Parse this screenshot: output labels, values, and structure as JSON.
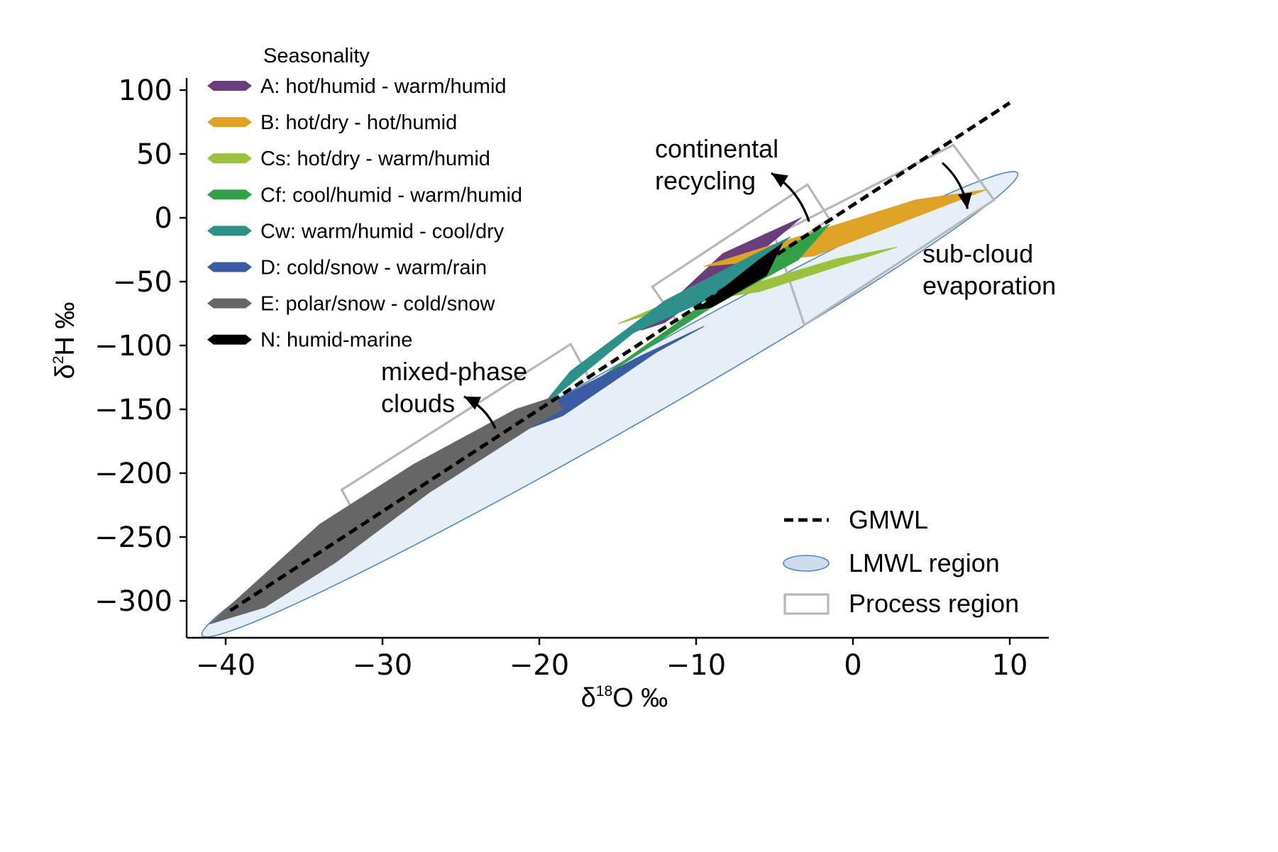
{
  "chart_data": {
    "type": "area",
    "xlabel": {
      "base": "δ",
      "sup": "18",
      "rest": "O ‰"
    },
    "ylabel": {
      "base": "δ",
      "sup": "2",
      "rest": "H ‰"
    },
    "xlim": [
      -42.5,
      12.5
    ],
    "ylim": [
      -330,
      110
    ],
    "xticks": [
      -40,
      -30,
      -20,
      -10,
      0,
      10
    ],
    "yticks": [
      100,
      50,
      0,
      -50,
      -100,
      -150,
      -200,
      -250,
      -300
    ],
    "xtick_labels": [
      "−40",
      "−30",
      "−20",
      "−10",
      "0",
      "10"
    ],
    "ytick_labels": [
      "100",
      "50",
      "0",
      "−50",
      "−100",
      "−150",
      "−200",
      "−250",
      "−300"
    ],
    "grid": false,
    "seasonality_legend": {
      "title": "Seasonality",
      "placement": "upper-left"
    },
    "series": [
      {
        "name": "A: hot/humid - warm/humid",
        "color": "#6b3d7d",
        "polygon": [
          [
            -3.3,
            0
          ],
          [
            -8.3,
            -28
          ],
          [
            -13.5,
            -88
          ],
          [
            -12.0,
            -82
          ],
          [
            -7.0,
            -38
          ]
        ]
      },
      {
        "name": "B: hot/dry - hot/humid",
        "color": "#dea227",
        "polygon": [
          [
            8.5,
            22
          ],
          [
            4.0,
            14
          ],
          [
            -9.5,
            -38
          ],
          [
            -2.5,
            -30
          ]
        ]
      },
      {
        "name": "Cs: hot/dry - warm/humid",
        "color": "#9bc13e",
        "polygon": [
          [
            2.8,
            -23
          ],
          [
            -1.0,
            -32
          ],
          [
            -15.0,
            -83
          ],
          [
            -12.5,
            -70
          ],
          [
            -6.0,
            -58
          ]
        ]
      },
      {
        "name": "Cf: cool/humid - warm/humid",
        "color": "#32a048",
        "polygon": [
          [
            -1.5,
            -5
          ],
          [
            -5.0,
            -28
          ],
          [
            -17.0,
            -133
          ],
          [
            -19.0,
            -153
          ],
          [
            -16.0,
            -125
          ],
          [
            -9.0,
            -70
          ],
          [
            -3.5,
            -33
          ]
        ]
      },
      {
        "name": "Cw: warm/humid - cool/dry",
        "color": "#2d918a",
        "polygon": [
          [
            -4.0,
            -15
          ],
          [
            -6.5,
            -30
          ],
          [
            -12.0,
            -65
          ],
          [
            -18.0,
            -120
          ],
          [
            -20.0,
            -150
          ],
          [
            -14.0,
            -90
          ],
          [
            -8.5,
            -60
          ]
        ]
      },
      {
        "name": "D: cold/snow - warm/rain",
        "color": "#3a5ca4",
        "polygon": [
          [
            -9.5,
            -85
          ],
          [
            -12.5,
            -105
          ],
          [
            -18.5,
            -155
          ],
          [
            -25.0,
            -185
          ],
          [
            -30.0,
            -215
          ],
          [
            -32.5,
            -237
          ],
          [
            -30.0,
            -230
          ],
          [
            -25.5,
            -190
          ],
          [
            -18.5,
            -140
          ],
          [
            -13.5,
            -108
          ]
        ]
      },
      {
        "name": "E: polar/snow - cold/snow",
        "color": "#666666",
        "polygon": [
          [
            -19.0,
            -140
          ],
          [
            -21.5,
            -150
          ],
          [
            -28.0,
            -193
          ],
          [
            -34.0,
            -240
          ],
          [
            -41.0,
            -318
          ],
          [
            -37.5,
            -305
          ],
          [
            -33.0,
            -270
          ],
          [
            -27.0,
            -215
          ],
          [
            -20.0,
            -160
          ],
          [
            -18.5,
            -150
          ]
        ]
      },
      {
        "name": "N: humid-marine",
        "color": "#000000",
        "polygon": [
          [
            -4.5,
            -20
          ],
          [
            -6.0,
            -33
          ],
          [
            -10.0,
            -72
          ],
          [
            -9.0,
            -70
          ],
          [
            -5.5,
            -45
          ]
        ]
      }
    ],
    "gmwl": {
      "slope": 8,
      "intercept": 10,
      "x_range": [
        -39.7,
        10
      ]
    },
    "lmwl_region": {
      "center": [
        -15.5,
        -142
      ],
      "angle_from": [
        -41.5,
        -327
      ],
      "angle_to": [
        10.5,
        35
      ],
      "semi_minor": 3.9
    },
    "process_regions": [
      {
        "corners": [
          [
            -32.6,
            -213
          ],
          [
            -18.0,
            -99
          ],
          [
            -16.7,
            -128
          ],
          [
            -31.3,
            -242
          ]
        ]
      },
      {
        "corners": [
          [
            -12.8,
            -54
          ],
          [
            -2.9,
            26
          ],
          [
            -1.5,
            -1
          ],
          [
            -11.2,
            -82
          ]
        ]
      },
      {
        "corners": [
          [
            -5.0,
            -14
          ],
          [
            6.4,
            57
          ],
          [
            9.0,
            14
          ],
          [
            -3.1,
            -84
          ]
        ]
      }
    ],
    "annotations": [
      {
        "lines": [
          "mixed-phase",
          "clouds"
        ],
        "arrow_from": [
          -22.8,
          -165
        ],
        "arrow_to": [
          -24.8,
          -140
        ]
      },
      {
        "lines": [
          "continental",
          "recycling"
        ],
        "arrow_from": [
          -2.8,
          -3
        ],
        "arrow_to": [
          -5.2,
          35
        ]
      },
      {
        "lines": [
          "sub-cloud",
          "evaporation"
        ],
        "arrow_from": [
          5.7,
          43
        ],
        "arrow_to": [
          7.3,
          7
        ]
      }
    ],
    "process_legend": {
      "placement": "lower-right",
      "items": [
        {
          "label": "GMWL"
        },
        {
          "label": "LMWL region"
        },
        {
          "label": "Process region"
        }
      ]
    },
    "colors": {
      "lmwl_fill": "#e6eff8",
      "lmwl_edge": "#4d86c6",
      "process_edge": "#b7b7b7",
      "axis": "#000000"
    }
  }
}
